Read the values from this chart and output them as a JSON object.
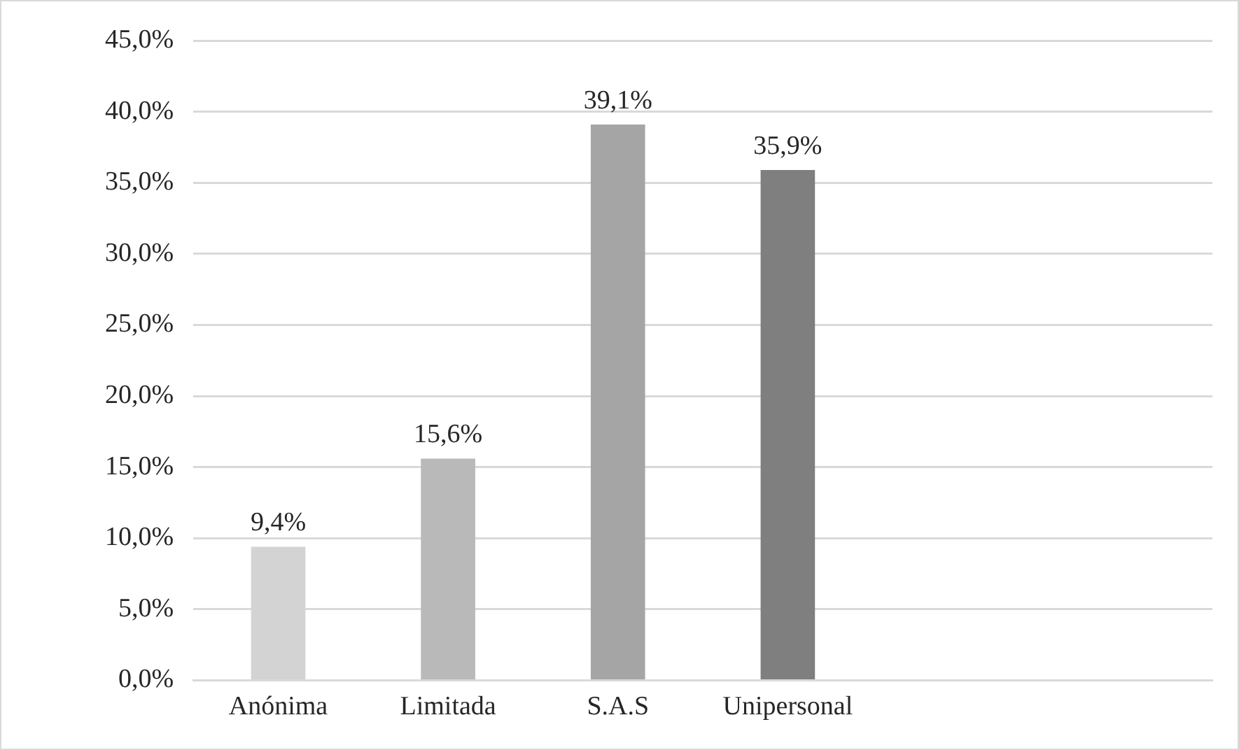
{
  "chart_data": {
    "type": "bar",
    "categories": [
      "Anónima",
      "Limitada",
      "S.A.S",
      "Unipersonal",
      null,
      null
    ],
    "values": [
      9.4,
      15.6,
      39.1,
      35.9,
      null,
      null
    ],
    "colors": [
      "#d3d3d3",
      "#b9b9b9",
      "#a5a5a5",
      "#7f7f7f",
      "#7f7f7f",
      "#7f7f7f"
    ],
    "value_labels": [
      "9,4%",
      "15,6%",
      "39,1%",
      "35,9%",
      null,
      null
    ],
    "ylim": [
      0,
      45
    ],
    "yticks": [
      {
        "value": 0,
        "label": "0,0%"
      },
      {
        "value": 5,
        "label": "5,0%"
      },
      {
        "value": 10,
        "label": "10,0%"
      },
      {
        "value": 15,
        "label": "15,0%"
      },
      {
        "value": 20,
        "label": "20,0%"
      },
      {
        "value": 25,
        "label": "25,0%"
      },
      {
        "value": 30,
        "label": "30,0%"
      },
      {
        "value": 35,
        "label": "35,0%"
      },
      {
        "value": 40,
        "label": "40,0%"
      },
      {
        "value": 45,
        "label": "45,0%"
      }
    ],
    "grid": "y",
    "legend": false
  }
}
